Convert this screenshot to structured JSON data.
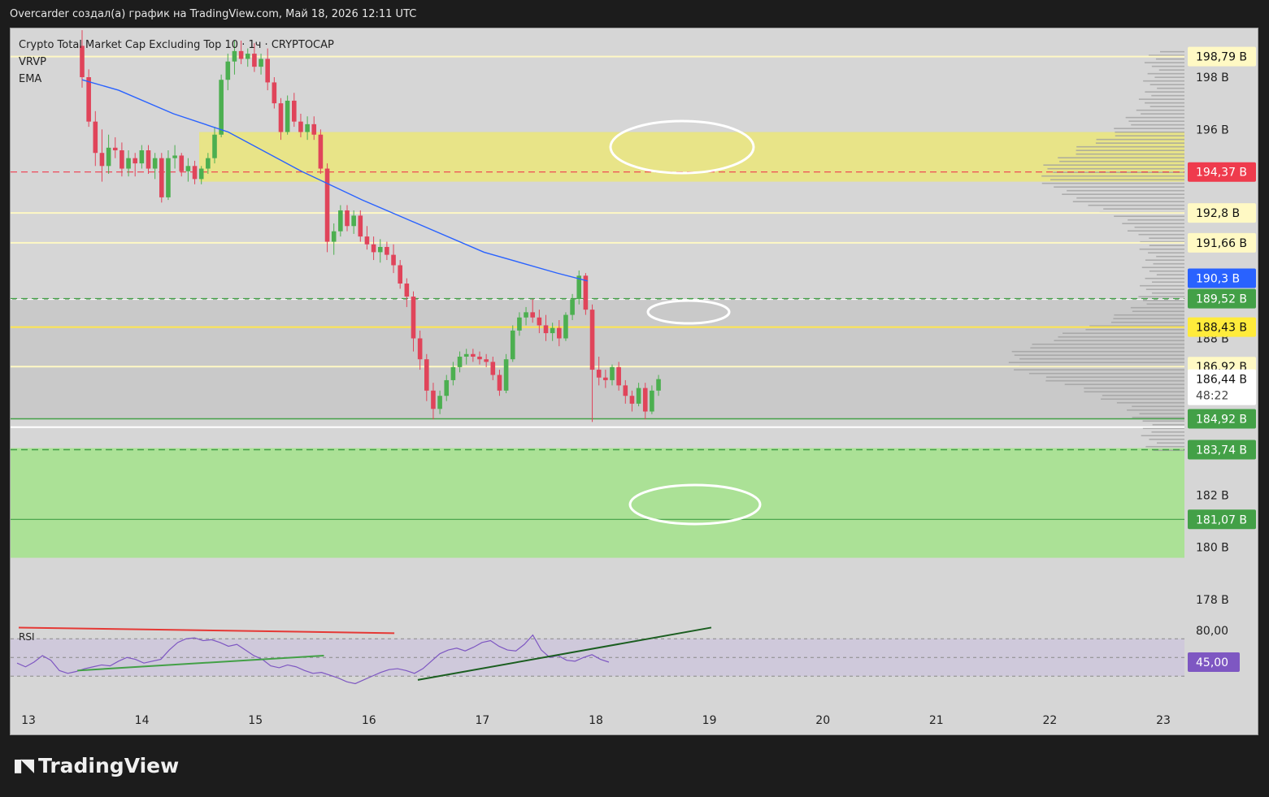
{
  "header": {
    "caption": "Overcarder создал(а) график на TradingView.com, Май 18, 2026 12:11 UTC"
  },
  "legend": {
    "symbol": "Crypto Total Market Cap Excluding Top 10 · 1ч · CRYPTOCAP",
    "indicators": [
      "VRVP",
      "EMA"
    ]
  },
  "footer": {
    "brand": "TradingView"
  },
  "colors": {
    "up": "#4caf50",
    "down": "#e0445a",
    "ema": "#2962ff",
    "resistance_zone": "#ebe67a",
    "support_zone": "#abe196",
    "rsi_line": "#7e57c2",
    "rsi_badge": "#7e57c2",
    "level_red": "#ef3b4d",
    "level_green": "#43a047",
    "level_blue": "#2962ff",
    "level_yellow": "#fff176"
  },
  "chart_data": {
    "type": "candlestick",
    "symbol": "CRYPTOCAP",
    "timeframe": "1ч",
    "x_ticks": [
      "13",
      "14",
      "15",
      "16",
      "17",
      "18",
      "19",
      "20",
      "21",
      "22",
      "23"
    ],
    "y_ticks": [
      "198 B",
      "196 B",
      "188 B",
      "182 B",
      "180 B",
      "178 B"
    ],
    "ylim": [
      176.5,
      199
    ],
    "price_labels": [
      {
        "text": "198,79 B",
        "value": 198.79,
        "style": "level_yellow"
      },
      {
        "text": "194,37 B",
        "value": 194.37,
        "style": "level_red"
      },
      {
        "text": "192,8 B",
        "value": 192.8,
        "style": "level_yellow"
      },
      {
        "text": "191,66 B",
        "value": 191.66,
        "style": "level_yellow"
      },
      {
        "text": "190,3 B",
        "value": 190.3,
        "style": "level_blue"
      },
      {
        "text": "189,52 B",
        "value": 189.52,
        "style": "level_green"
      },
      {
        "text": "188,43 B",
        "value": 188.43,
        "style": "level_gold"
      },
      {
        "text": "186,92 B",
        "value": 186.92,
        "style": "level_yellow"
      },
      {
        "text": "186,44 B",
        "value": 186.44,
        "style": "current",
        "countdown": "48:22"
      },
      {
        "text": "184,92 B",
        "value": 184.92,
        "style": "level_green"
      },
      {
        "text": "183,74 B",
        "value": 183.74,
        "style": "level_green"
      },
      {
        "text": "181,07 B",
        "value": 181.07,
        "style": "level_green"
      }
    ],
    "zones": [
      {
        "kind": "resistance",
        "from": 194.0,
        "to": 195.9
      },
      {
        "kind": "support",
        "from": 179.6,
        "to": 183.8
      }
    ],
    "candles_ohlc": [
      [
        199.2,
        199.8,
        197.6,
        198.0
      ],
      [
        198.0,
        198.3,
        196.1,
        196.3
      ],
      [
        196.3,
        196.7,
        194.6,
        195.1
      ],
      [
        195.1,
        196.0,
        194.0,
        194.6
      ],
      [
        194.6,
        195.8,
        194.3,
        195.3
      ],
      [
        195.3,
        195.7,
        194.9,
        195.2
      ],
      [
        195.2,
        195.5,
        194.2,
        194.5
      ],
      [
        194.5,
        195.2,
        194.2,
        194.9
      ],
      [
        194.9,
        195.1,
        194.2,
        194.7
      ],
      [
        194.7,
        195.4,
        194.5,
        195.2
      ],
      [
        195.2,
        195.4,
        194.3,
        194.5
      ],
      [
        194.5,
        195.1,
        194.1,
        194.9
      ],
      [
        194.9,
        195.1,
        193.2,
        193.4
      ],
      [
        193.4,
        195.2,
        193.3,
        194.9
      ],
      [
        194.9,
        195.4,
        194.5,
        195.0
      ],
      [
        195.0,
        195.1,
        194.2,
        194.4
      ],
      [
        194.4,
        194.9,
        194.0,
        194.6
      ],
      [
        194.6,
        194.8,
        193.9,
        194.1
      ],
      [
        194.1,
        194.6,
        193.9,
        194.5
      ],
      [
        194.5,
        195.1,
        194.3,
        194.9
      ],
      [
        194.9,
        196.1,
        194.7,
        195.8
      ],
      [
        195.8,
        198.1,
        195.7,
        197.9
      ],
      [
        197.9,
        198.9,
        197.5,
        198.6
      ],
      [
        198.6,
        199.4,
        198.1,
        199.0
      ],
      [
        199.0,
        199.4,
        198.5,
        198.7
      ],
      [
        198.7,
        199.1,
        198.4,
        198.9
      ],
      [
        198.9,
        199.3,
        198.2,
        198.4
      ],
      [
        198.4,
        198.9,
        198.1,
        198.7
      ],
      [
        198.7,
        199.1,
        197.5,
        197.8
      ],
      [
        197.8,
        198.0,
        196.8,
        197.0
      ],
      [
        197.0,
        197.2,
        195.6,
        195.9
      ],
      [
        195.9,
        197.3,
        195.8,
        197.1
      ],
      [
        197.1,
        197.4,
        196.1,
        196.3
      ],
      [
        196.3,
        196.6,
        195.7,
        195.9
      ],
      [
        195.9,
        196.5,
        195.6,
        196.2
      ],
      [
        196.2,
        196.5,
        195.6,
        195.8
      ],
      [
        195.8,
        196.0,
        194.3,
        194.5
      ],
      [
        194.5,
        194.7,
        191.3,
        191.7
      ],
      [
        191.7,
        192.4,
        191.2,
        192.1
      ],
      [
        192.1,
        193.1,
        191.9,
        192.9
      ],
      [
        192.9,
        193.1,
        192.1,
        192.3
      ],
      [
        192.3,
        192.9,
        192.0,
        192.7
      ],
      [
        192.7,
        192.9,
        191.7,
        191.9
      ],
      [
        191.9,
        192.3,
        191.4,
        191.6
      ],
      [
        191.6,
        191.9,
        191.0,
        191.3
      ],
      [
        191.3,
        191.8,
        190.9,
        191.5
      ],
      [
        191.5,
        191.7,
        191.0,
        191.2
      ],
      [
        191.2,
        191.6,
        190.5,
        190.8
      ],
      [
        190.8,
        191.0,
        189.9,
        190.1
      ],
      [
        190.1,
        190.3,
        189.2,
        189.6
      ],
      [
        189.6,
        189.8,
        187.5,
        188.0
      ],
      [
        188.0,
        188.3,
        186.8,
        187.2
      ],
      [
        187.2,
        187.4,
        185.6,
        186.0
      ],
      [
        186.0,
        186.3,
        184.9,
        185.3
      ],
      [
        185.3,
        186.0,
        185.1,
        185.8
      ],
      [
        185.8,
        186.6,
        185.6,
        186.4
      ],
      [
        186.4,
        187.1,
        186.2,
        186.9
      ],
      [
        186.9,
        187.5,
        186.7,
        187.3
      ],
      [
        187.3,
        187.6,
        187.0,
        187.4
      ],
      [
        187.4,
        187.6,
        187.1,
        187.3
      ],
      [
        187.3,
        187.5,
        187.0,
        187.2
      ],
      [
        187.2,
        187.4,
        186.9,
        187.1
      ],
      [
        187.1,
        187.3,
        186.4,
        186.6
      ],
      [
        186.6,
        186.8,
        185.8,
        186.0
      ],
      [
        186.0,
        187.4,
        185.9,
        187.2
      ],
      [
        187.2,
        188.5,
        187.1,
        188.3
      ],
      [
        188.3,
        189.0,
        188.1,
        188.8
      ],
      [
        188.8,
        189.2,
        188.5,
        189.0
      ],
      [
        189.0,
        189.5,
        188.6,
        188.8
      ],
      [
        188.8,
        189.1,
        188.2,
        188.5
      ],
      [
        188.5,
        188.9,
        187.9,
        188.2
      ],
      [
        188.2,
        188.6,
        187.9,
        188.4
      ],
      [
        188.4,
        188.7,
        187.7,
        188.0
      ],
      [
        188.0,
        189.0,
        187.9,
        188.9
      ],
      [
        188.9,
        189.7,
        188.7,
        189.5
      ],
      [
        189.5,
        190.6,
        189.3,
        190.4
      ],
      [
        190.4,
        190.5,
        188.9,
        189.1
      ],
      [
        189.1,
        189.3,
        184.8,
        186.8
      ],
      [
        186.8,
        187.3,
        186.2,
        186.5
      ],
      [
        186.5,
        186.8,
        186.1,
        186.4
      ],
      [
        186.4,
        187.0,
        186.2,
        186.9
      ],
      [
        186.9,
        187.1,
        186.0,
        186.2
      ],
      [
        186.2,
        186.4,
        185.5,
        185.8
      ],
      [
        185.8,
        186.0,
        185.2,
        185.5
      ],
      [
        185.5,
        186.3,
        185.4,
        186.1
      ],
      [
        186.1,
        186.3,
        184.9,
        185.2
      ],
      [
        185.2,
        186.2,
        185.1,
        186.0
      ],
      [
        186.0,
        186.6,
        185.8,
        186.44
      ]
    ],
    "ema_points": [
      [
        197.9,
        0
      ],
      [
        197.5,
        0.06
      ],
      [
        196.6,
        0.15
      ],
      [
        195.9,
        0.24
      ],
      [
        194.4,
        0.36
      ],
      [
        193.3,
        0.46
      ],
      [
        192.6,
        0.53
      ],
      [
        191.3,
        0.66
      ],
      [
        190.5,
        0.78
      ],
      [
        190.2,
        0.83
      ]
    ],
    "rsi": {
      "label": "RSI",
      "value": 45.0,
      "value_text": "45,00",
      "tick": "80,00",
      "band_upper": 70,
      "band_lower": 30,
      "series": [
        44,
        40,
        45,
        52,
        47,
        36,
        33,
        35,
        38,
        40,
        42,
        41,
        46,
        50,
        48,
        44,
        46,
        48,
        58,
        66,
        70,
        71,
        68,
        69,
        66,
        62,
        64,
        58,
        52,
        48,
        41,
        39,
        42,
        40,
        36,
        33,
        34,
        31,
        28,
        24,
        22,
        26,
        30,
        34,
        37,
        38,
        36,
        33,
        38,
        46,
        54,
        58,
        60,
        57,
        61,
        66,
        68,
        62,
        58,
        57,
        64,
        74,
        58,
        50,
        52,
        47,
        46,
        50,
        53,
        48,
        45
      ]
    },
    "trendlines": [
      {
        "pane": "rsi",
        "color": "#e53935",
        "from": [
          0,
          82
        ],
        "to": [
          0.32,
          76
        ]
      },
      {
        "pane": "rsi",
        "color": "#43a047",
        "from": [
          0.05,
          36
        ],
        "to": [
          0.26,
          52
        ]
      },
      {
        "pane": "rsi",
        "color": "#1b5e20",
        "from": [
          0.34,
          26
        ],
        "to": [
          0.59,
          82
        ]
      }
    ]
  }
}
